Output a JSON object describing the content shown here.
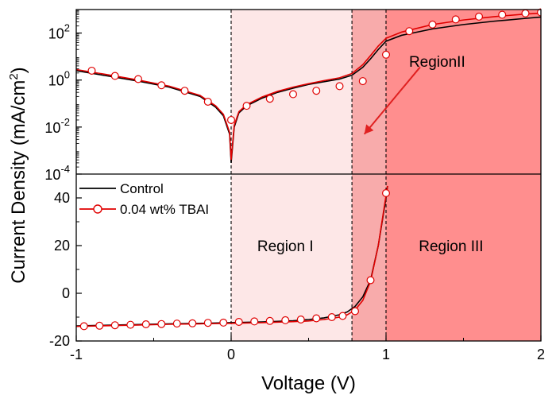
{
  "chart_data": {
    "type": "line",
    "x_label": "Voltage (V)",
    "y_label": "Current Density (mA/cm",
    "y_label_sup": "2",
    "y_label_end": ")",
    "xlim": [
      -1,
      2
    ],
    "x_ticks": [
      "-1",
      "0",
      "1",
      "2"
    ],
    "top_panel": {
      "scale": "log",
      "ylim_exp": [
        -4,
        3
      ],
      "y_ticks": [
        {
          "exp": -4,
          "base": "10",
          "sup": "-4"
        },
        {
          "exp": -2,
          "base": "10",
          "sup": "-2"
        },
        {
          "exp": 0,
          "base": "10",
          "sup": "0"
        },
        {
          "exp": 2,
          "base": "10",
          "sup": "2"
        }
      ],
      "series": [
        {
          "name": "Control",
          "x": [
            -1,
            -0.8,
            -0.6,
            -0.4,
            -0.2,
            -0.1,
            -0.05,
            -0.01,
            0,
            0.02,
            0.05,
            0.1,
            0.2,
            0.3,
            0.4,
            0.5,
            0.6,
            0.7,
            0.78,
            0.85,
            0.9,
            0.95,
            1.0,
            1.1,
            1.3,
            1.5,
            1.7,
            1.9,
            2.0
          ],
          "y": [
            2.5,
            1.5,
            0.9,
            0.5,
            0.2,
            0.07,
            0.03,
            0.005,
            0.0003,
            0.01,
            0.04,
            0.08,
            0.17,
            0.3,
            0.45,
            0.65,
            0.85,
            1.1,
            1.6,
            3.5,
            8,
            20,
            45,
            80,
            150,
            230,
            320,
            420,
            480
          ]
        },
        {
          "name": "0.04 wt% TBAI",
          "x": [
            -1,
            -0.8,
            -0.6,
            -0.4,
            -0.2,
            -0.1,
            -0.05,
            -0.01,
            0,
            0.02,
            0.05,
            0.1,
            0.2,
            0.3,
            0.4,
            0.5,
            0.6,
            0.7,
            0.78,
            0.85,
            0.9,
            0.95,
            1.0,
            1.1,
            1.3,
            1.5,
            1.7,
            1.9,
            2.0
          ],
          "y": [
            2.8,
            1.7,
            1.0,
            0.55,
            0.22,
            0.08,
            0.035,
            0.006,
            0.0004,
            0.012,
            0.045,
            0.09,
            0.19,
            0.33,
            0.5,
            0.7,
            0.95,
            1.25,
            1.9,
            4.5,
            11,
            28,
            60,
            110,
            230,
            360,
            500,
            640,
            700
          ]
        }
      ],
      "marker_x": [
        -0.9,
        -0.75,
        -0.6,
        -0.45,
        -0.3,
        -0.15,
        0,
        0.1,
        0.25,
        0.4,
        0.55,
        0.7,
        0.85,
        1.0,
        1.15,
        1.3,
        1.45,
        1.6,
        1.75,
        1.9,
        2.0
      ],
      "marker_y": [
        2.5,
        1.5,
        1.1,
        0.6,
        0.35,
        0.12,
        0.02,
        0.08,
        0.16,
        0.25,
        0.35,
        0.55,
        0.9,
        12,
        120,
        230,
        380,
        500,
        600,
        690,
        760
      ]
    },
    "bottom_panel": {
      "scale": "linear",
      "ylim": [
        -20,
        50
      ],
      "y_ticks": [
        "-20",
        "0",
        "20",
        "40"
      ],
      "series": [
        {
          "name": "Control",
          "x": [
            -1,
            -0.8,
            -0.6,
            -0.4,
            -0.2,
            0,
            0.2,
            0.4,
            0.5,
            0.6,
            0.7,
            0.75,
            0.8,
            0.85,
            0.9,
            0.95,
            1.0,
            1.01
          ],
          "y": [
            -13.7,
            -13.4,
            -13.1,
            -12.8,
            -12.6,
            -12.3,
            -12.0,
            -11.5,
            -11.0,
            -10.3,
            -9.0,
            -7.8,
            -5.5,
            -1.5,
            5.5,
            20,
            40,
            45
          ]
        },
        {
          "name": "0.04 wt% TBAI",
          "x": [
            -1,
            -0.8,
            -0.6,
            -0.4,
            -0.2,
            0,
            0.2,
            0.4,
            0.5,
            0.6,
            0.7,
            0.75,
            0.8,
            0.85,
            0.9,
            0.95,
            1.0,
            1.01
          ],
          "y": [
            -13.9,
            -13.6,
            -13.3,
            -13.0,
            -12.8,
            -12.6,
            -12.3,
            -11.9,
            -11.6,
            -11.0,
            -10.0,
            -9.0,
            -7.0,
            -3.0,
            5.0,
            20,
            41,
            45
          ]
        }
      ],
      "marker_x": [
        -0.95,
        -0.85,
        -0.75,
        -0.65,
        -0.55,
        -0.45,
        -0.35,
        -0.25,
        -0.15,
        -0.05,
        0.05,
        0.15,
        0.25,
        0.35,
        0.45,
        0.55,
        0.65,
        0.72,
        0.8,
        0.9,
        1.0
      ],
      "marker_y": [
        -13.8,
        -13.6,
        -13.4,
        -13.2,
        -13.0,
        -12.9,
        -12.7,
        -12.6,
        -12.4,
        -12.3,
        -12.0,
        -11.8,
        -11.6,
        -11.3,
        -11.0,
        -10.5,
        -10.0,
        -9.5,
        -7.5,
        5.5,
        42
      ]
    },
    "regions": [
      {
        "name": "Region I",
        "x_start": 0,
        "x_end": 0.78,
        "color": "#fde7e7"
      },
      {
        "name": "RegionII",
        "x_start": 0.78,
        "x_end": 1.0,
        "color": "#f8abab"
      },
      {
        "name": "Region III",
        "x_start": 1.0,
        "x_end": 2.0,
        "color": "#ff8e8e"
      }
    ],
    "region_labels": {
      "region_1": "Region I",
      "region_2": "RegionII",
      "region_3": "Region III"
    },
    "region_label_pos": {
      "region_1": {
        "x": 0.35,
        "y": 20
      },
      "region_3": {
        "x": 1.42,
        "y": 20
      },
      "region_2": {
        "x": 1.33,
        "exp": 0.8
      }
    },
    "annotation_arrow": {
      "from_x": 1.22,
      "from_exp": 0.55,
      "to_x": 0.86,
      "to_exp": -2.3
    },
    "legend": [
      {
        "label": "Control",
        "color": "#000000",
        "marker": false
      },
      {
        "label": "0.04 wt% TBAI",
        "color": "#e00000",
        "marker": true
      }
    ],
    "colors": {
      "control": "#000000",
      "tbai": "#e00000",
      "marker_fill": "#ffffff"
    }
  }
}
